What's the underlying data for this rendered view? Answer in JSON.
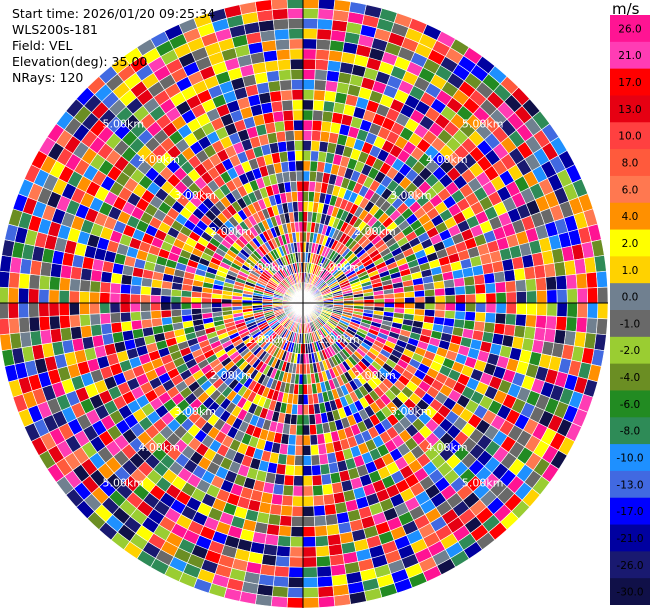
{
  "info": {
    "start_time": "Start time: 2026/01/20 09:25:34",
    "instrument": "WLS200s-181",
    "field": "Field: VEL",
    "elevation": "Elevation(deg): 35.00",
    "nrays": "NRays: 120"
  },
  "chart_data": {
    "type": "heatmap",
    "subtype": "ppi-polar",
    "field": "VEL",
    "units": "m/s",
    "n_rays": 120,
    "n_gates": 30,
    "range_max_km": 6.0,
    "range_ring_labels": [
      "1.00km",
      "2.00km",
      "3.00km",
      "4.00km",
      "5.00km"
    ],
    "colorbar": {
      "title": "m/s",
      "ticks": [
        "26.0",
        "21.0",
        "17.0",
        "13.0",
        "10.0",
        "8.0",
        "6.0",
        "4.0",
        "2.0",
        "1.0",
        "0.0",
        "-1.0",
        "-2.0",
        "-4.0",
        "-6.0",
        "-8.0",
        "-10.0",
        "-13.0",
        "-17.0",
        "-21.0",
        "-26.0",
        "-30.0"
      ],
      "colors": [
        "#ff1493",
        "#ff3cb4",
        "#ff0000",
        "#e60012",
        "#ff4040",
        "#ff5a3c",
        "#ff7850",
        "#ff9000",
        "#ffff00",
        "#ffd200",
        "#708090",
        "#696969",
        "#9acd32",
        "#6b8e23",
        "#228b22",
        "#2e8b57",
        "#1e90ff",
        "#4169e1",
        "#0000ff",
        "#0000a0",
        "#191970",
        "#101048"
      ]
    }
  }
}
